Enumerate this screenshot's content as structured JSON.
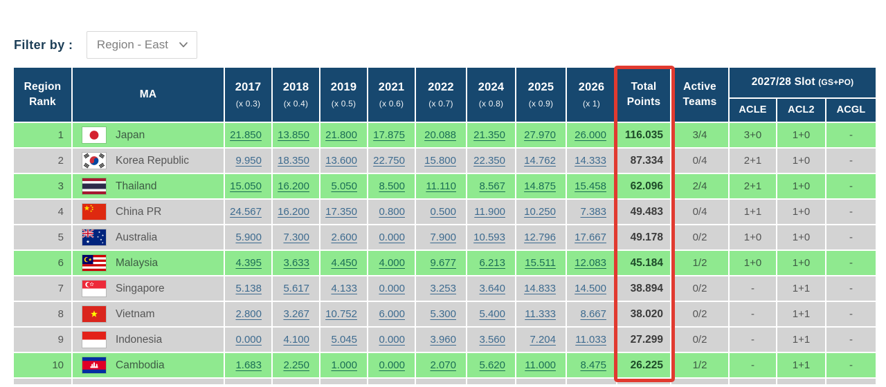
{
  "filter": {
    "label": "Filter by :",
    "selected": "Region - East"
  },
  "table": {
    "headers": {
      "region_rank": "Region Rank",
      "ma": "MA",
      "years": [
        {
          "year": "2017",
          "mult": "(x 0.3)"
        },
        {
          "year": "2018",
          "mult": "(x 0.4)"
        },
        {
          "year": "2019",
          "mult": "(x 0.5)"
        },
        {
          "year": "2021",
          "mult": "(x 0.6)"
        },
        {
          "year": "2022",
          "mult": "(x 0.7)"
        },
        {
          "year": "2024",
          "mult": "(x 0.8)"
        },
        {
          "year": "2025",
          "mult": "(x 0.9)"
        },
        {
          "year": "2026",
          "mult": "(x 1)"
        }
      ],
      "total_points": "Total Points",
      "active_teams": "Active Teams",
      "slot_group": "2027/28 Slot",
      "slot_note": "(GS+PO)",
      "slot_cols": [
        "ACLE",
        "ACL2",
        "ACGL"
      ]
    },
    "rows": [
      {
        "rank": "1",
        "country": "Japan",
        "flag": "jp",
        "highlight": true,
        "years": [
          "21.850",
          "13.850",
          "21.800",
          "17.875",
          "20.088",
          "21.350",
          "27.970",
          "26.000"
        ],
        "total": "116.035",
        "active": "3/4",
        "acle": "3+0",
        "acl2": "1+0",
        "acgl": "-"
      },
      {
        "rank": "2",
        "country": "Korea Republic",
        "flag": "kr",
        "highlight": false,
        "years": [
          "9.950",
          "18.350",
          "13.600",
          "22.750",
          "15.800",
          "22.350",
          "14.762",
          "14.333"
        ],
        "total": "87.334",
        "active": "0/4",
        "acle": "2+1",
        "acl2": "1+0",
        "acgl": "-"
      },
      {
        "rank": "3",
        "country": "Thailand",
        "flag": "th",
        "highlight": true,
        "years": [
          "15.050",
          "16.200",
          "5.050",
          "8.500",
          "11.110",
          "8.567",
          "14.875",
          "15.458"
        ],
        "total": "62.096",
        "active": "2/4",
        "acle": "2+1",
        "acl2": "1+0",
        "acgl": "-"
      },
      {
        "rank": "4",
        "country": "China PR",
        "flag": "cn",
        "highlight": false,
        "years": [
          "24.567",
          "16.200",
          "17.350",
          "0.800",
          "0.500",
          "11.900",
          "10.250",
          "7.383"
        ],
        "total": "49.483",
        "active": "0/4",
        "acle": "1+1",
        "acl2": "1+0",
        "acgl": "-"
      },
      {
        "rank": "5",
        "country": "Australia",
        "flag": "au",
        "highlight": false,
        "years": [
          "5.900",
          "7.300",
          "2.600",
          "0.000",
          "7.900",
          "10.593",
          "12.796",
          "17.667"
        ],
        "total": "49.178",
        "active": "0/2",
        "acle": "1+0",
        "acl2": "1+0",
        "acgl": "-"
      },
      {
        "rank": "6",
        "country": "Malaysia",
        "flag": "my",
        "highlight": true,
        "years": [
          "4.395",
          "3.633",
          "4.450",
          "4.000",
          "9.677",
          "6.213",
          "15.511",
          "12.083"
        ],
        "total": "45.184",
        "active": "1/2",
        "acle": "1+0",
        "acl2": "1+0",
        "acgl": "-"
      },
      {
        "rank": "7",
        "country": "Singapore",
        "flag": "sg",
        "highlight": false,
        "years": [
          "5.138",
          "5.617",
          "4.133",
          "0.000",
          "3.253",
          "3.640",
          "14.833",
          "14.500"
        ],
        "total": "38.894",
        "active": "0/2",
        "acle": "-",
        "acl2": "1+1",
        "acgl": "-"
      },
      {
        "rank": "8",
        "country": "Vietnam",
        "flag": "vn",
        "highlight": false,
        "years": [
          "2.800",
          "3.267",
          "10.752",
          "6.000",
          "5.300",
          "5.400",
          "11.333",
          "8.667"
        ],
        "total": "38.020",
        "active": "0/2",
        "acle": "-",
        "acl2": "1+1",
        "acgl": "-"
      },
      {
        "rank": "9",
        "country": "Indonesia",
        "flag": "id",
        "highlight": false,
        "years": [
          "0.000",
          "4.100",
          "5.045",
          "0.000",
          "3.960",
          "3.560",
          "7.204",
          "11.033"
        ],
        "total": "27.299",
        "active": "0/2",
        "acle": "-",
        "acl2": "1+1",
        "acgl": "-"
      },
      {
        "rank": "10",
        "country": "Cambodia",
        "flag": "kh",
        "highlight": true,
        "years": [
          "1.683",
          "2.250",
          "1.000",
          "0.000",
          "2.070",
          "5.620",
          "11.000",
          "8.475"
        ],
        "total": "26.225",
        "active": "1/2",
        "acle": "-",
        "acl2": "1+1",
        "acgl": "-"
      }
    ],
    "partial_row_visible": true
  },
  "colors": {
    "header_navy": "#17486f",
    "row_green": "#8fe98f",
    "row_gray": "#d3d3d3",
    "highlight_red": "#e13a30",
    "filter_label_navy": "#1c3e57"
  },
  "icons": {
    "chevron_down": "chevron-down-icon"
  }
}
